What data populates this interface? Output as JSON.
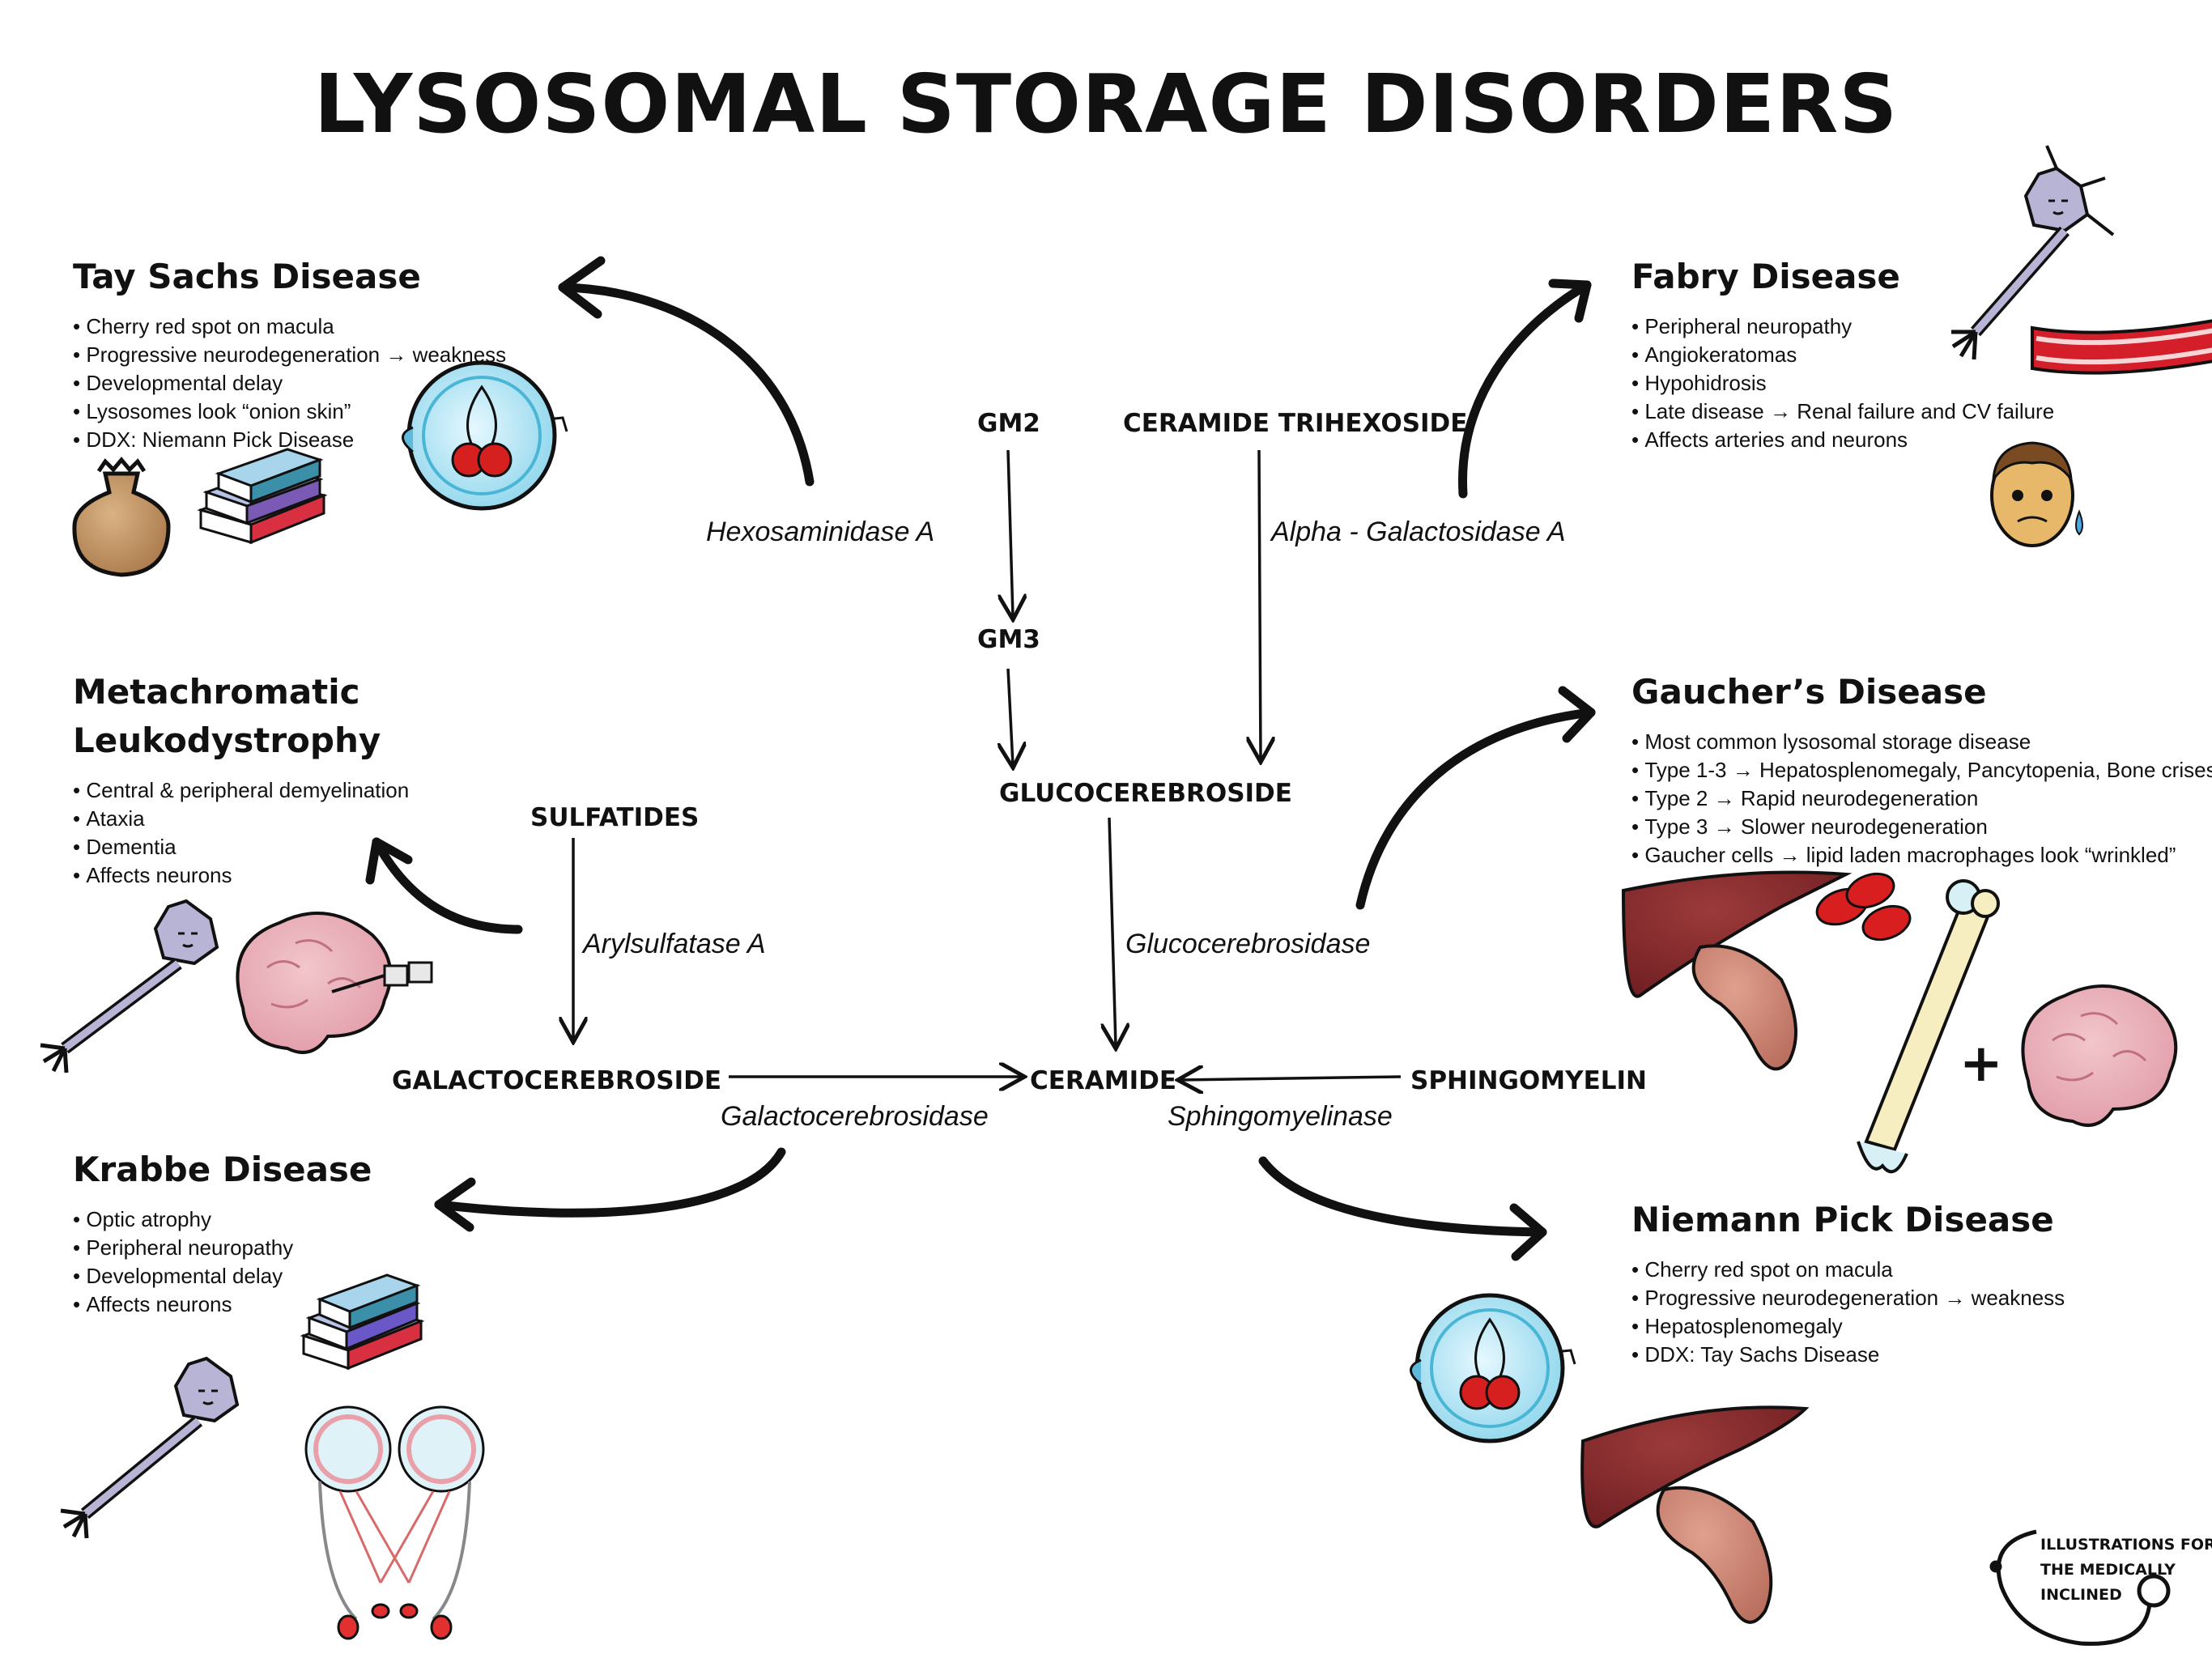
{
  "title": "LYSOSOMAL STORAGE DISORDERS",
  "diseases": {
    "tay_sachs": {
      "name": "Tay Sachs Disease",
      "features": [
        "Cherry red spot on macula",
        "Progressive neurodegeneration → weakness",
        "Developmental delay",
        "Lysosomes look “onion skin”",
        "DDX: Niemann Pick Disease"
      ]
    },
    "fabry": {
      "name": "Fabry Disease",
      "features": [
        "Peripheral neuropathy",
        "Angiokeratomas",
        "Hypohidrosis",
        "Late disease → Renal failure and CV failure",
        "Affects arteries and neurons"
      ]
    },
    "metachromatic": {
      "name_line1": "Metachromatic",
      "name_line2": "Leukodystrophy",
      "features": [
        "Central & peripheral demyelination",
        "Ataxia",
        "Dementia",
        "Affects neurons"
      ]
    },
    "gaucher": {
      "name": "Gaucher’s Disease",
      "features": [
        "Most common lysosomal storage disease",
        "Type 1-3 → Hepatosplenomegaly, Pancytopenia, Bone crises",
        "Type 2 → Rapid neurodegeneration",
        "Type 3 → Slower neurodegeneration",
        "Gaucher cells → lipid laden macrophages look “wrinkled”"
      ]
    },
    "krabbe": {
      "name": "Krabbe Disease",
      "features": [
        "Optic atrophy",
        "Peripheral neuropathy",
        "Developmental delay",
        "Affects neurons"
      ]
    },
    "niemann_pick": {
      "name": "Niemann Pick Disease",
      "features": [
        "Cherry red spot on macula",
        "Progressive neurodegeneration → weakness",
        "Hepatosplenomegaly",
        "DDX: Tay Sachs Disease"
      ]
    }
  },
  "molecules": {
    "gm2": "GM2",
    "gm3": "GM3",
    "ceramide_trihexoside": "CERAMIDE TRIHEXOSIDE",
    "glucocerebroside": "GLUCOCEREBROSIDE",
    "sulfatides": "SULFATIDES",
    "galactocerebroside": "GALACTOCEREBROSIDE",
    "ceramide": "CERAMIDE",
    "sphingomyelin": "SPHINGOMYELIN"
  },
  "enzymes": {
    "hexosaminidase_a": "Hexosaminidase A",
    "alpha_galactosidase_a": "Alpha - Galactosidase A",
    "arylsulfatase_a": "Arylsulfatase A",
    "glucocerebrosidase": "Glucocerebrosidase",
    "galactocerebrosidase": "Galactocerebrosidase",
    "sphingomyelinase": "Sphingomyelinase"
  },
  "plus_sign": "+",
  "logo": {
    "line1": "ILLUSTRATIONS FOR",
    "line2": "THE MEDICALLY",
    "line3": "INCLINED"
  }
}
